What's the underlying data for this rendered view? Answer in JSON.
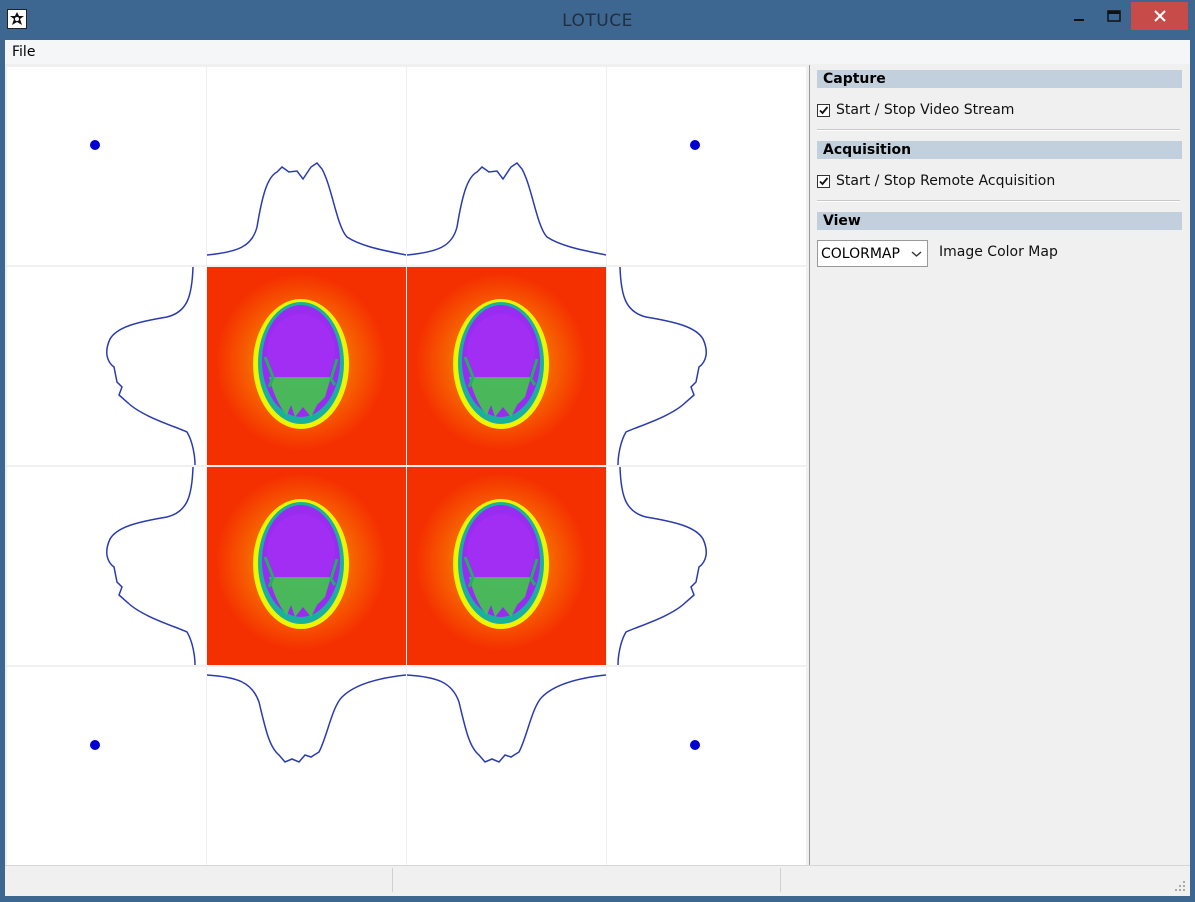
{
  "window": {
    "title": "LOTUCE"
  },
  "menu": {
    "file": "File"
  },
  "panel": {
    "capture": {
      "header": "Capture",
      "video_stream_label": "Start / Stop Video Stream",
      "video_stream_checked": true
    },
    "acquisition": {
      "header": "Acquisition",
      "remote_acq_label": "Start / Stop Remote Acquisition",
      "remote_acq_checked": true
    },
    "view": {
      "header": "View",
      "colormap_selected": "COLORMAP",
      "colormap_label": "Image Color Map"
    }
  },
  "colors": {
    "plot_line": "#2a3bb0",
    "marker": "#0000d0",
    "heatmap_background": "#f53000",
    "head_core": "#9a2bf0"
  }
}
